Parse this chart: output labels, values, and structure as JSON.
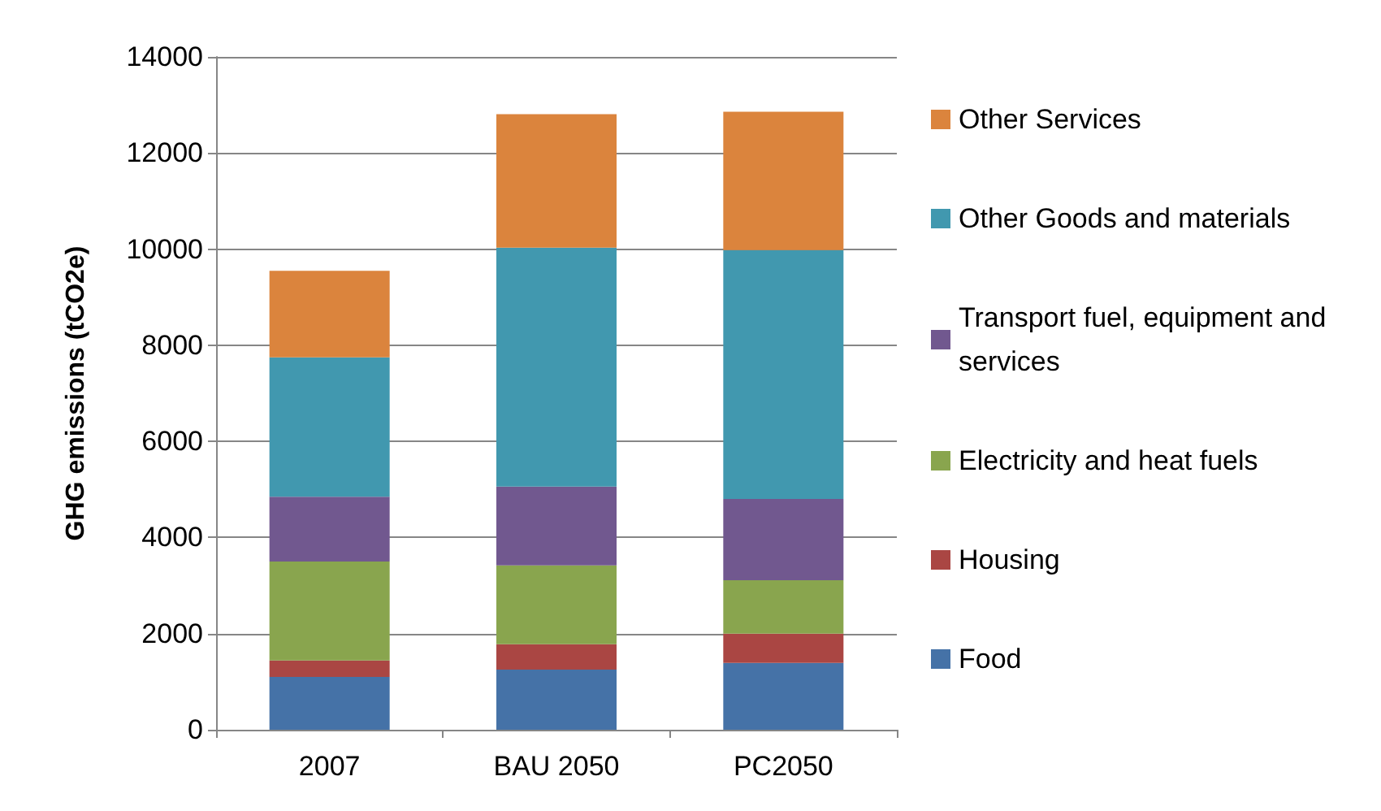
{
  "chart_data": {
    "type": "bar",
    "stacked": true,
    "ylabel": "GHG emissions (tCO2e)",
    "categories": [
      "2007",
      "BAU 2050",
      "PC2050"
    ],
    "series": [
      {
        "name": "Food",
        "color": "#4572a7",
        "values": [
          1100,
          1250,
          1390
        ]
      },
      {
        "name": "Housing",
        "color": "#aa4643",
        "values": [
          340,
          530,
          610
        ]
      },
      {
        "name": "Electricity and heat fuels",
        "color": "#89a54e",
        "values": [
          2060,
          1640,
          1110
        ]
      },
      {
        "name": "Transport fuel, equipment and services",
        "color": "#71588f",
        "values": [
          1350,
          1640,
          1690
        ]
      },
      {
        "name": "Other Goods and materials",
        "color": "#4198af",
        "values": [
          2900,
          4970,
          5180
        ]
      },
      {
        "name": "Other Services",
        "color": "#db843d",
        "values": [
          1800,
          2780,
          2880
        ]
      }
    ],
    "ylim": [
      0,
      14000
    ],
    "yticks": [
      0,
      2000,
      4000,
      6000,
      8000,
      10000,
      12000,
      14000
    ],
    "grid": "y",
    "legend": "right"
  }
}
